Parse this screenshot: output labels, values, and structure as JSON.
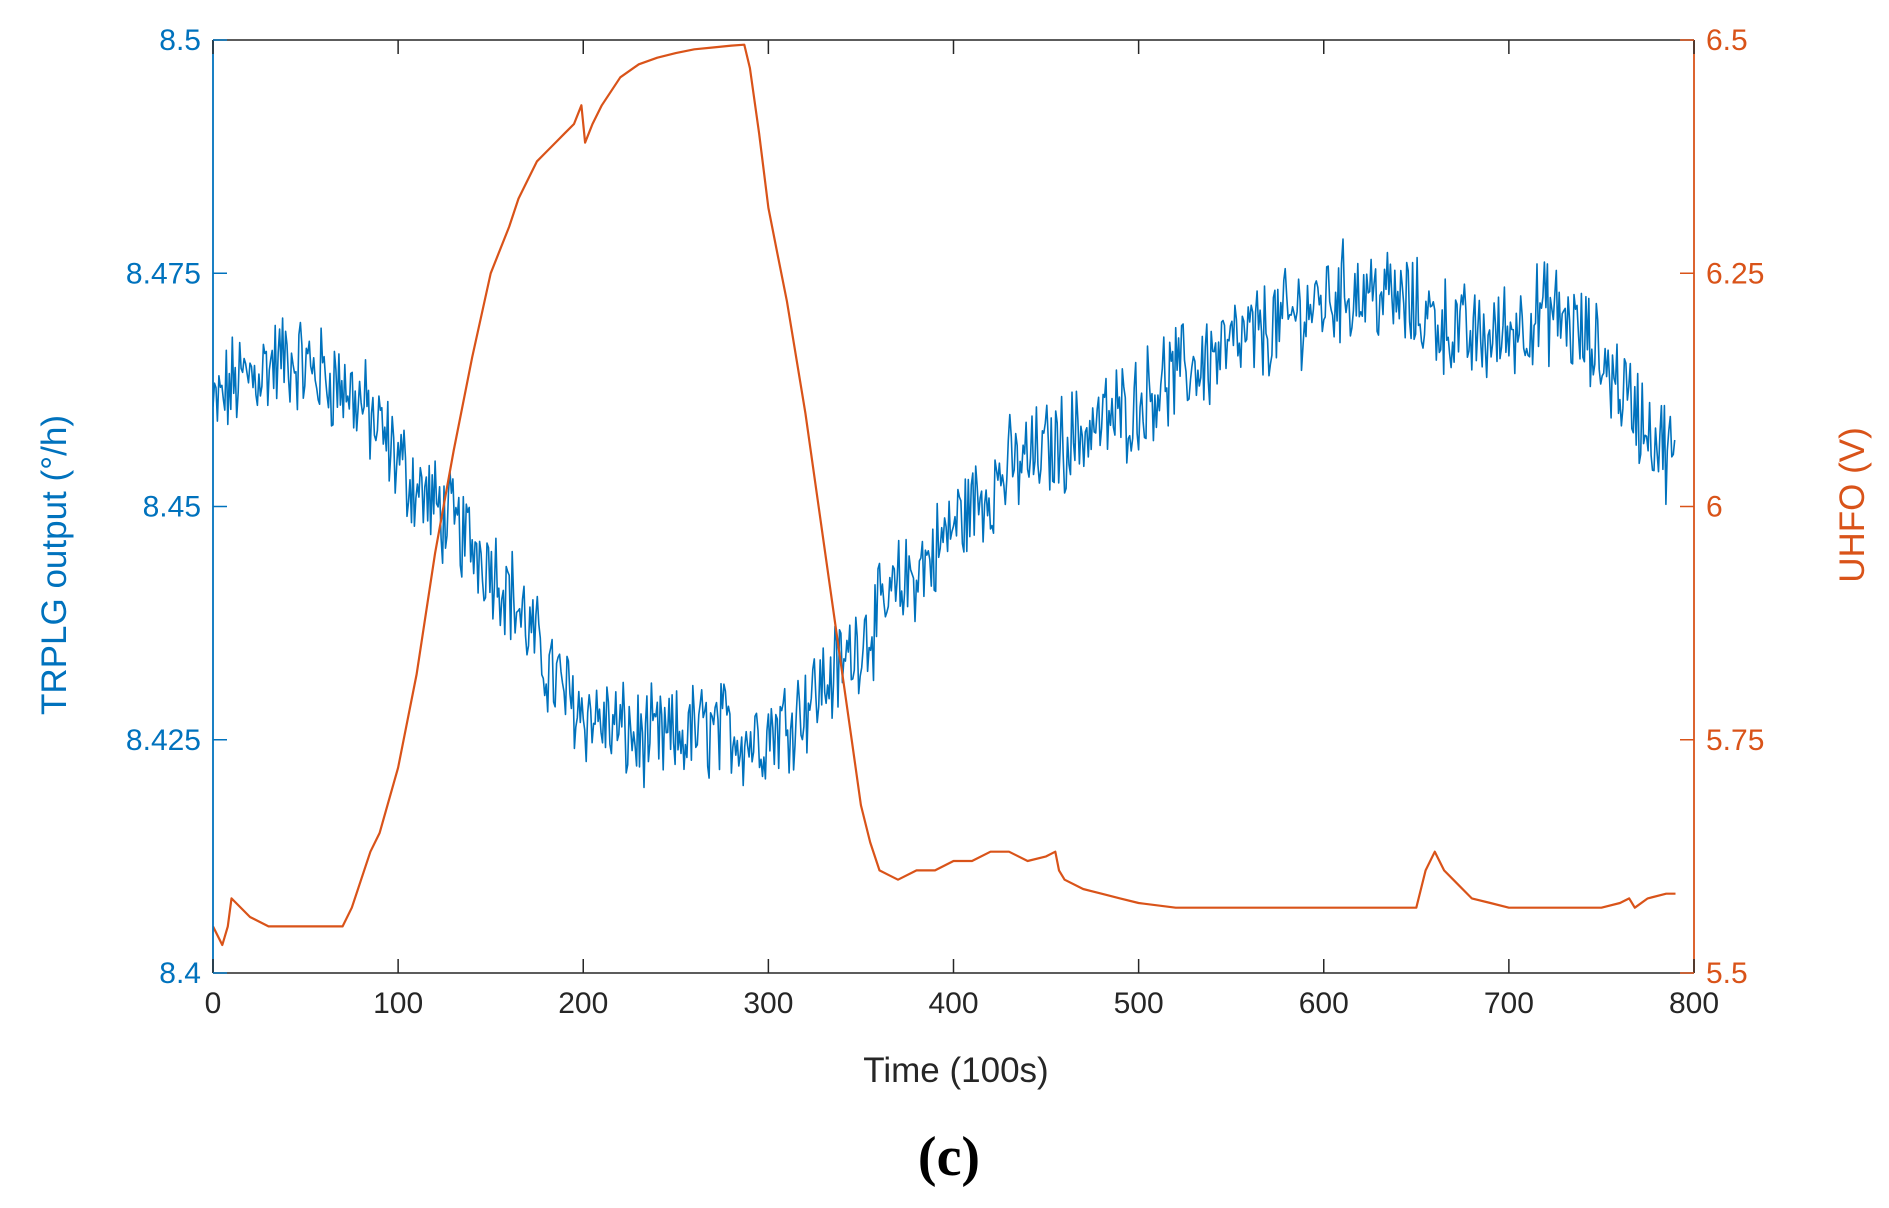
{
  "chart_data": {
    "type": "line",
    "title": "",
    "panel_label": "(c)",
    "xlabel": "Time (100s)",
    "xlim": [
      0,
      800
    ],
    "x_ticks": [
      0,
      100,
      200,
      300,
      400,
      500,
      600,
      700,
      800
    ],
    "x_tick_labels": [
      "0",
      "100",
      "200",
      "300",
      "400",
      "500",
      "600",
      "700",
      "800"
    ],
    "y_left": {
      "label": "TRPLG output (°/h)",
      "lim": [
        8.4,
        8.5
      ],
      "ticks": [
        8.4,
        8.425,
        8.45,
        8.475,
        8.5
      ],
      "tick_labels": [
        "8.4",
        "8.425",
        "8.45",
        "8.475",
        "8.5"
      ],
      "color": "#0072BD"
    },
    "y_right": {
      "label": "UHFO (V)",
      "lim": [
        5.5,
        6.5
      ],
      "ticks": [
        5.5,
        5.75,
        6,
        6.25,
        6.5
      ],
      "tick_labels": [
        "5.5",
        "5.75",
        "6",
        "6.25",
        "6.5"
      ],
      "color": "#D95319"
    },
    "series": [
      {
        "name": "TRPLG output",
        "axis": "left",
        "color": "#0072BD",
        "noise_amplitude": 0.0045,
        "x": [
          0,
          10,
          20,
          30,
          40,
          50,
          60,
          70,
          80,
          90,
          100,
          110,
          120,
          130,
          140,
          150,
          160,
          170,
          180,
          190,
          200,
          210,
          220,
          230,
          240,
          250,
          260,
          270,
          280,
          290,
          300,
          310,
          320,
          330,
          340,
          350,
          360,
          370,
          380,
          390,
          400,
          410,
          420,
          430,
          440,
          450,
          460,
          470,
          480,
          490,
          500,
          510,
          520,
          530,
          540,
          550,
          560,
          570,
          580,
          590,
          600,
          610,
          620,
          630,
          640,
          650,
          660,
          670,
          680,
          690,
          700,
          710,
          720,
          730,
          740,
          750,
          760,
          770,
          780,
          790
        ],
        "values": [
          8.46,
          8.463,
          8.464,
          8.465,
          8.466,
          8.465,
          8.464,
          8.463,
          8.461,
          8.458,
          8.455,
          8.452,
          8.45,
          8.448,
          8.446,
          8.444,
          8.441,
          8.437,
          8.433,
          8.43,
          8.428,
          8.427,
          8.426,
          8.425,
          8.425,
          8.425,
          8.426,
          8.426,
          8.426,
          8.425,
          8.426,
          8.427,
          8.429,
          8.431,
          8.433,
          8.436,
          8.438,
          8.441,
          8.443,
          8.445,
          8.448,
          8.45,
          8.452,
          8.454,
          8.455,
          8.456,
          8.457,
          8.458,
          8.459,
          8.46,
          8.461,
          8.463,
          8.464,
          8.465,
          8.466,
          8.467,
          8.468,
          8.469,
          8.47,
          8.471,
          8.472,
          8.473,
          8.473,
          8.473,
          8.472,
          8.471,
          8.47,
          8.469,
          8.468,
          8.468,
          8.469,
          8.47,
          8.471,
          8.47,
          8.468,
          8.466,
          8.463,
          8.46,
          8.457,
          8.455
        ]
      },
      {
        "name": "UHFO",
        "axis": "right",
        "color": "#D95319",
        "x": [
          0,
          5,
          8,
          10,
          20,
          30,
          50,
          70,
          75,
          80,
          85,
          90,
          100,
          110,
          120,
          130,
          140,
          150,
          160,
          165,
          170,
          175,
          180,
          185,
          190,
          195,
          199,
          201,
          205,
          210,
          220,
          230,
          240,
          250,
          260,
          270,
          280,
          287,
          290,
          295,
          300,
          305,
          310,
          320,
          330,
          340,
          345,
          350,
          355,
          360,
          370,
          380,
          390,
          400,
          410,
          420,
          430,
          440,
          450,
          455,
          457,
          460,
          470,
          480,
          490,
          500,
          520,
          550,
          600,
          650,
          655,
          660,
          665,
          670,
          680,
          690,
          700,
          710,
          720,
          730,
          740,
          750,
          760,
          765,
          768,
          775,
          785,
          790
        ],
        "values": [
          5.55,
          5.53,
          5.55,
          5.58,
          5.56,
          5.55,
          5.55,
          5.55,
          5.57,
          5.6,
          5.63,
          5.65,
          5.72,
          5.82,
          5.95,
          6.06,
          6.16,
          6.25,
          6.3,
          6.33,
          6.35,
          6.37,
          6.38,
          6.39,
          6.4,
          6.41,
          6.43,
          6.39,
          6.41,
          6.43,
          6.46,
          6.474,
          6.481,
          6.486,
          6.49,
          6.492,
          6.494,
          6.495,
          6.47,
          6.4,
          6.32,
          6.27,
          6.22,
          6.1,
          5.96,
          5.82,
          5.75,
          5.68,
          5.64,
          5.61,
          5.6,
          5.61,
          5.61,
          5.62,
          5.62,
          5.63,
          5.63,
          5.62,
          5.625,
          5.63,
          5.61,
          5.6,
          5.59,
          5.585,
          5.58,
          5.575,
          5.57,
          5.57,
          5.57,
          5.57,
          5.61,
          5.63,
          5.61,
          5.6,
          5.58,
          5.575,
          5.57,
          5.57,
          5.57,
          5.57,
          5.57,
          5.57,
          5.575,
          5.58,
          5.57,
          5.58,
          5.585,
          5.585
        ]
      }
    ]
  }
}
